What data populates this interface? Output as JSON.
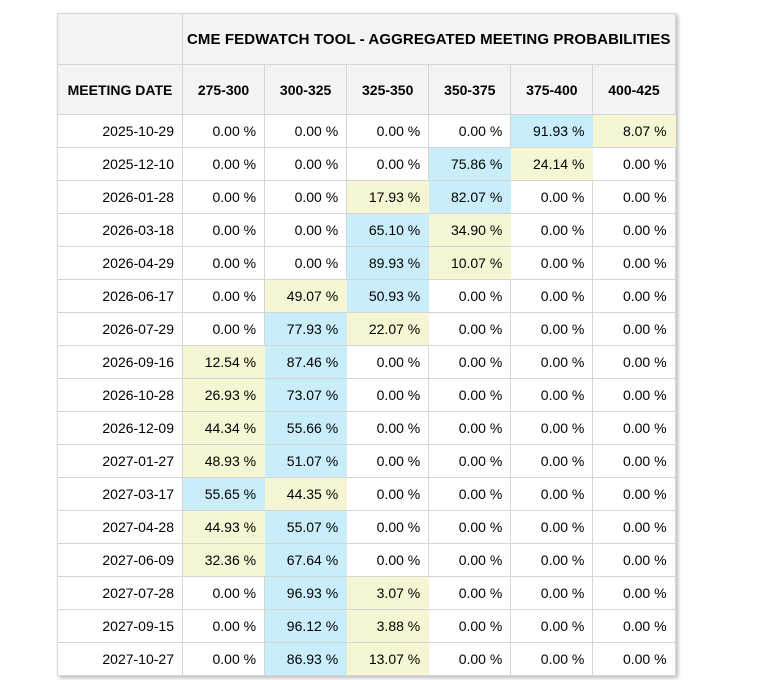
{
  "page": {
    "background": "#ffffff"
  },
  "table": {
    "title": "CME FEDWATCH TOOL - AGGREGATED MEETING PROBABILITIES",
    "corner_label": "",
    "date_header": "MEETING DATE",
    "rate_headers": [
      "275-300",
      "300-325",
      "325-350",
      "350-375",
      "375-400",
      "400-425"
    ],
    "rows": [
      {
        "date": "2025-10-29",
        "values": [
          "0.00 %",
          "0.00 %",
          "0.00 %",
          "0.00 %",
          "91.93 %",
          "8.07 %"
        ],
        "highlights": [
          "none",
          "none",
          "none",
          "none",
          "blue",
          "yellow"
        ]
      },
      {
        "date": "2025-12-10",
        "values": [
          "0.00 %",
          "0.00 %",
          "0.00 %",
          "75.86 %",
          "24.14 %",
          "0.00 %"
        ],
        "highlights": [
          "none",
          "none",
          "none",
          "blue",
          "yellow",
          "none"
        ]
      },
      {
        "date": "2026-01-28",
        "values": [
          "0.00 %",
          "0.00 %",
          "17.93 %",
          "82.07 %",
          "0.00 %",
          "0.00 %"
        ],
        "highlights": [
          "none",
          "none",
          "yellow",
          "blue",
          "none",
          "none"
        ]
      },
      {
        "date": "2026-03-18",
        "values": [
          "0.00 %",
          "0.00 %",
          "65.10 %",
          "34.90 %",
          "0.00 %",
          "0.00 %"
        ],
        "highlights": [
          "none",
          "none",
          "blue",
          "yellow",
          "none",
          "none"
        ]
      },
      {
        "date": "2026-04-29",
        "values": [
          "0.00 %",
          "0.00 %",
          "89.93 %",
          "10.07 %",
          "0.00 %",
          "0.00 %"
        ],
        "highlights": [
          "none",
          "none",
          "blue",
          "yellow",
          "none",
          "none"
        ]
      },
      {
        "date": "2026-06-17",
        "values": [
          "0.00 %",
          "49.07 %",
          "50.93 %",
          "0.00 %",
          "0.00 %",
          "0.00 %"
        ],
        "highlights": [
          "none",
          "yellow",
          "blue",
          "none",
          "none",
          "none"
        ]
      },
      {
        "date": "2026-07-29",
        "values": [
          "0.00 %",
          "77.93 %",
          "22.07 %",
          "0.00 %",
          "0.00 %",
          "0.00 %"
        ],
        "highlights": [
          "none",
          "blue",
          "yellow",
          "none",
          "none",
          "none"
        ]
      },
      {
        "date": "2026-09-16",
        "values": [
          "12.54 %",
          "87.46 %",
          "0.00 %",
          "0.00 %",
          "0.00 %",
          "0.00 %"
        ],
        "highlights": [
          "yellow",
          "blue",
          "none",
          "none",
          "none",
          "none"
        ]
      },
      {
        "date": "2026-10-28",
        "values": [
          "26.93 %",
          "73.07 %",
          "0.00 %",
          "0.00 %",
          "0.00 %",
          "0.00 %"
        ],
        "highlights": [
          "yellow",
          "blue",
          "none",
          "none",
          "none",
          "none"
        ]
      },
      {
        "date": "2026-12-09",
        "values": [
          "44.34 %",
          "55.66 %",
          "0.00 %",
          "0.00 %",
          "0.00 %",
          "0.00 %"
        ],
        "highlights": [
          "yellow",
          "blue",
          "none",
          "none",
          "none",
          "none"
        ]
      },
      {
        "date": "2027-01-27",
        "values": [
          "48.93 %",
          "51.07 %",
          "0.00 %",
          "0.00 %",
          "0.00 %",
          "0.00 %"
        ],
        "highlights": [
          "yellow",
          "blue",
          "none",
          "none",
          "none",
          "none"
        ]
      },
      {
        "date": "2027-03-17",
        "values": [
          "55.65 %",
          "44.35 %",
          "0.00 %",
          "0.00 %",
          "0.00 %",
          "0.00 %"
        ],
        "highlights": [
          "blue",
          "yellow",
          "none",
          "none",
          "none",
          "none"
        ]
      },
      {
        "date": "2027-04-28",
        "values": [
          "44.93 %",
          "55.07 %",
          "0.00 %",
          "0.00 %",
          "0.00 %",
          "0.00 %"
        ],
        "highlights": [
          "yellow",
          "blue",
          "none",
          "none",
          "none",
          "none"
        ]
      },
      {
        "date": "2027-06-09",
        "values": [
          "32.36 %",
          "67.64 %",
          "0.00 %",
          "0.00 %",
          "0.00 %",
          "0.00 %"
        ],
        "highlights": [
          "yellow",
          "blue",
          "none",
          "none",
          "none",
          "none"
        ]
      },
      {
        "date": "2027-07-28",
        "values": [
          "0.00 %",
          "96.93 %",
          "3.07 %",
          "0.00 %",
          "0.00 %",
          "0.00 %"
        ],
        "highlights": [
          "none",
          "blue",
          "yellow",
          "none",
          "none",
          "none"
        ]
      },
      {
        "date": "2027-09-15",
        "values": [
          "0.00 %",
          "96.12 %",
          "3.88 %",
          "0.00 %",
          "0.00 %",
          "0.00 %"
        ],
        "highlights": [
          "none",
          "blue",
          "yellow",
          "none",
          "none",
          "none"
        ]
      },
      {
        "date": "2027-10-27",
        "values": [
          "0.00 %",
          "86.93 %",
          "13.07 %",
          "0.00 %",
          "0.00 %",
          "0.00 %"
        ],
        "highlights": [
          "none",
          "blue",
          "yellow",
          "none",
          "none",
          "none"
        ]
      }
    ],
    "colors": {
      "highlight_blue": "#c9edf9",
      "highlight_yellow": "#f6f6d4",
      "header_bg": "#f4f4f4",
      "border": "#d6d6d6",
      "text": "#000000"
    }
  }
}
